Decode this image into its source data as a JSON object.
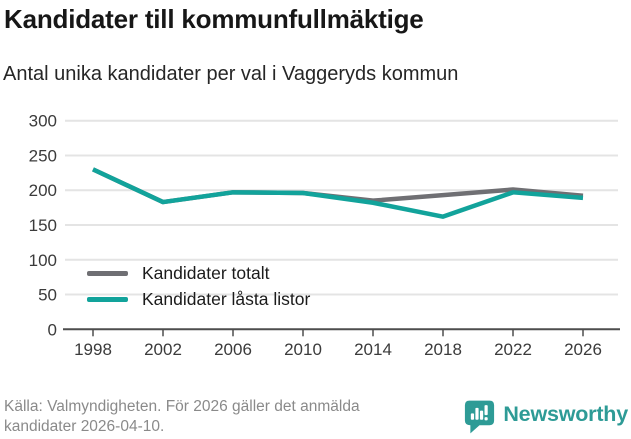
{
  "header": {
    "title": "Kandidater till kommunfullmäktige",
    "subtitle": "Antal unika kandidater per val i Vaggeryds kommun"
  },
  "chart_data": {
    "type": "line",
    "title": "Kandidater till kommunfullmäktige",
    "subtitle": "Antal unika kandidater per val i Vaggeryds kommun",
    "categories": [
      "1998",
      "2002",
      "2006",
      "2010",
      "2014",
      "2018",
      "2022",
      "2026"
    ],
    "series": [
      {
        "name": "Kandidater totalt",
        "color": "#6f6f73",
        "values": [
          230,
          183,
          197,
          196,
          185,
          193,
          201,
          192
        ]
      },
      {
        "name": "Kandidater låsta listor",
        "color": "#12a39b",
        "values": [
          230,
          183,
          197,
          196,
          182,
          162,
          197,
          189
        ]
      }
    ],
    "xlabel": "",
    "ylabel": "",
    "ylim": [
      0,
      300
    ],
    "yticks": [
      0,
      50,
      100,
      150,
      200,
      250,
      300
    ],
    "grid": true,
    "legend_position": "inside-bottom-left"
  },
  "footer": {
    "source": "Källa: Valmyndigheten. För 2026 gäller det anmälda kandidater 2026-04-10.",
    "brand": "Newsworthy"
  },
  "colors": {
    "teal": "#12a39b",
    "gray": "#6f6f73",
    "brand_teal": "#2e9b96",
    "grid": "#e4e4e4",
    "axis": "#4d4d4d",
    "tick_text": "#3b3b3b"
  }
}
